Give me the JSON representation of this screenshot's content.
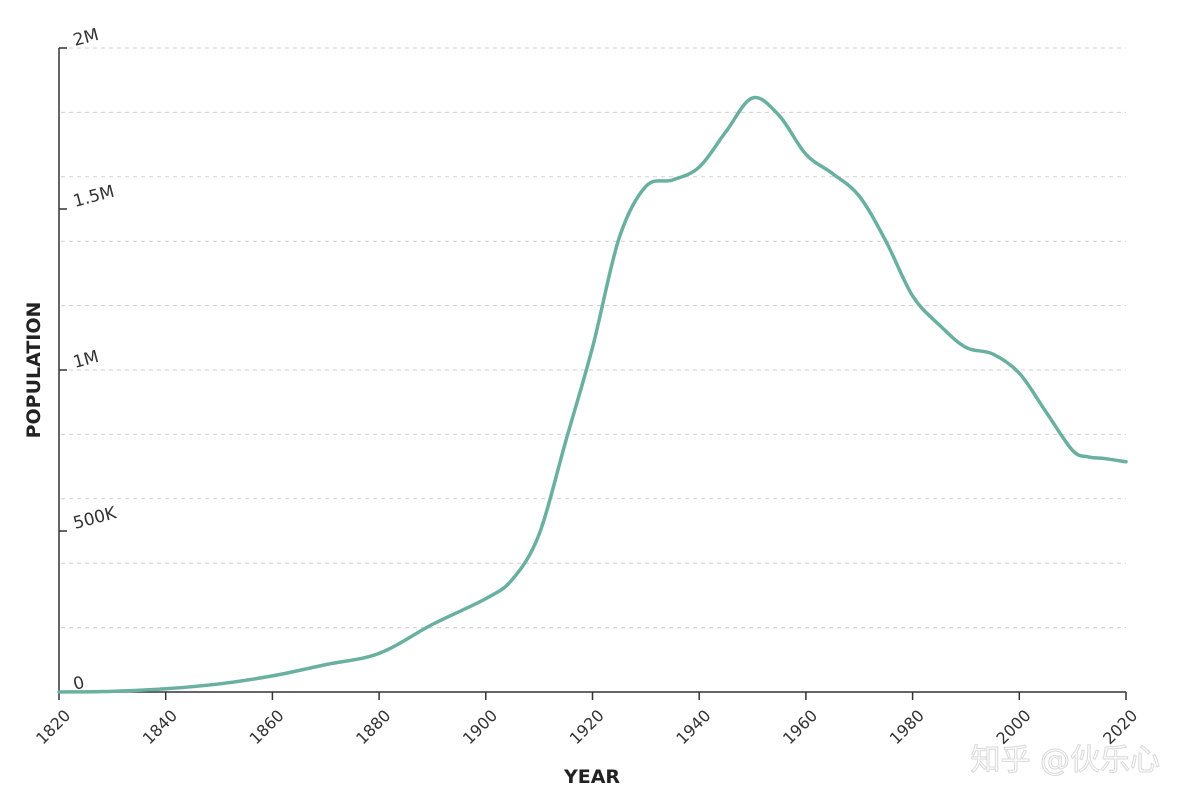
{
  "chart_data": {
    "type": "line",
    "title": "",
    "xlabel": "YEAR",
    "ylabel": "POPULATION",
    "xlim": [
      1820,
      2020
    ],
    "ylim": [
      0,
      2000000
    ],
    "grid": true,
    "x_ticks": [
      1820,
      1840,
      1860,
      1880,
      1900,
      1920,
      1940,
      1960,
      1980,
      2000,
      2020
    ],
    "x_tick_labels": [
      "1820",
      "1840",
      "1860",
      "1880",
      "1900",
      "1920",
      "1940",
      "1960",
      "1980",
      "2000",
      "2020"
    ],
    "y_ticks": [
      0,
      500000,
      1000000,
      1500000,
      2000000
    ],
    "y_tick_labels": [
      "0",
      "500K",
      "1M",
      "1.5M",
      "2M"
    ],
    "y_gridlines": [
      200000,
      400000,
      600000,
      800000,
      1000000,
      1200000,
      1400000,
      1600000,
      1800000,
      2000000
    ],
    "series": [
      {
        "color": "#6ab0a0",
        "x": [
          1820,
          1830,
          1840,
          1850,
          1860,
          1870,
          1880,
          1890,
          1900,
          1905,
          1910,
          1915,
          1920,
          1925,
          1930,
          1935,
          1940,
          1945,
          1950,
          1955,
          1960,
          1965,
          1970,
          1975,
          1980,
          1985,
          1990,
          1995,
          2000,
          2005,
          2010,
          2013,
          2016,
          2020
        ],
        "values": [
          0,
          2000,
          10000,
          25000,
          50000,
          85000,
          120000,
          210000,
          290000,
          350000,
          490000,
          780000,
          1070000,
          1410000,
          1570000,
          1590000,
          1630000,
          1740000,
          1845000,
          1790000,
          1670000,
          1610000,
          1540000,
          1400000,
          1230000,
          1140000,
          1070000,
          1050000,
          990000,
          870000,
          750000,
          730000,
          725000,
          715000
        ]
      }
    ]
  },
  "watermark": "知乎 @伙乐心"
}
